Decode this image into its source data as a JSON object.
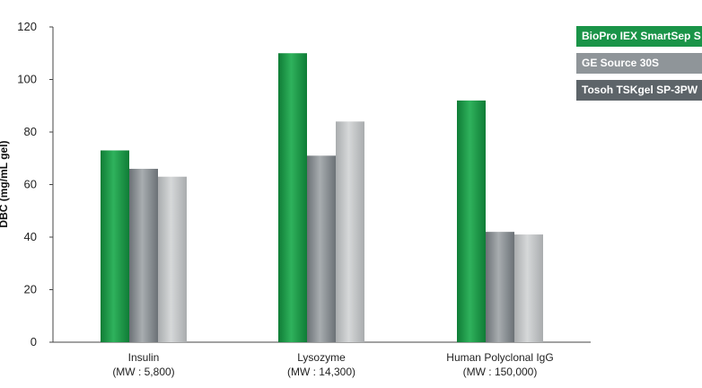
{
  "chart_data": {
    "type": "bar",
    "ylabel": "DBC (mg/mL gel)",
    "ylim": [
      0,
      120
    ],
    "yticks": [
      0,
      20,
      40,
      60,
      80,
      100,
      120
    ],
    "grid": false,
    "legend_position": "top-right",
    "categories": [
      {
        "name": "Insulin",
        "sub": "(MW : 5,800)"
      },
      {
        "name": "Lysozyme",
        "sub": "(MW : 14,300)"
      },
      {
        "name": "Human Polyclonal IgG",
        "sub": "(MW : 150,000)"
      }
    ],
    "series": [
      {
        "name": "BioPro IEX SmartSep S",
        "color": "#1f9a4b",
        "values": [
          73,
          110,
          92
        ]
      },
      {
        "name": "GE Source 30S",
        "color": "#8a9094",
        "values": [
          66,
          71,
          42
        ]
      },
      {
        "name": "Tosoh TSKgel SP-3PW",
        "color": "#c2c5c7",
        "values": [
          63,
          84,
          41
        ]
      }
    ]
  },
  "legend": [
    {
      "label": "BioPro IEX SmartSep S",
      "color": "#1a9448"
    },
    {
      "label": "GE Source 30S",
      "color": "#8f9599"
    },
    {
      "label": "Tosoh TSKgel SP-3PW",
      "color": "#5d6469"
    }
  ]
}
